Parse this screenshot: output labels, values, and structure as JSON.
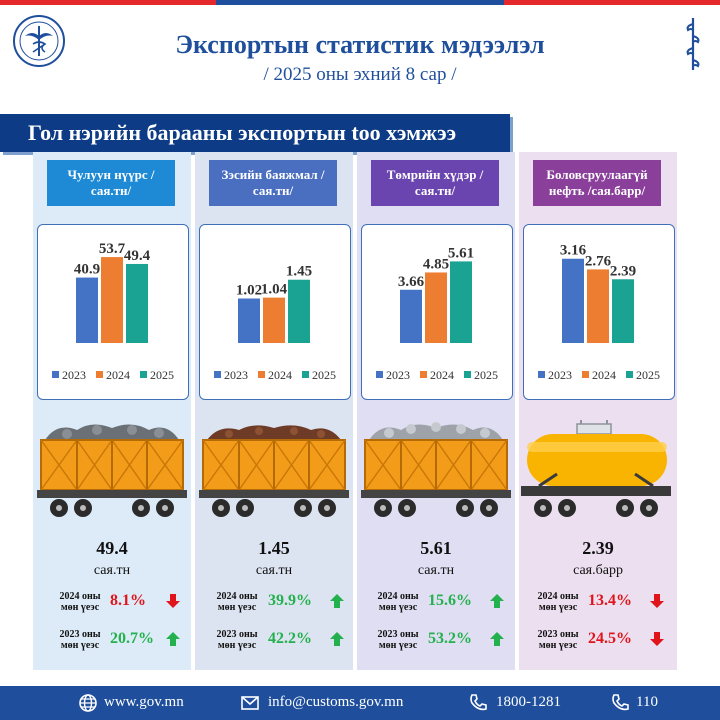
{
  "header": {
    "title": "Экспортын статистик мэдээлэл",
    "subtitle": "/ 2025 оны эхний 8 сар /",
    "section_title": "Гол нэрийн барааны экспортын too хэмжээ"
  },
  "colors": {
    "y2023": "#4472c4",
    "y2024": "#ed7d31",
    "y2025": "#1aa392",
    "up": "#22b14c",
    "down": "#e0151b"
  },
  "chart_data": [
    {
      "type": "bar",
      "title": "Чулуун нүүрс /сая.тн/",
      "categories": [
        "2023",
        "2024",
        "2025"
      ],
      "values": [
        40.9,
        53.7,
        49.4
      ],
      "ylim": [
        0,
        60
      ]
    },
    {
      "type": "bar",
      "title": "Зэсийн баяжмал /сая.тн/",
      "categories": [
        "2023",
        "2024",
        "2025"
      ],
      "values": [
        1.02,
        1.04,
        1.45
      ],
      "ylim": [
        0,
        2.2
      ]
    },
    {
      "type": "bar",
      "title": "Төмрийн хүдэр /сая.тн/",
      "categories": [
        "2023",
        "2024",
        "2025"
      ],
      "values": [
        3.66,
        4.85,
        5.61
      ],
      "ylim": [
        0,
        6.6
      ]
    },
    {
      "type": "bar",
      "title": "Боловсруулаагүй нефть /сая.барр/",
      "categories": [
        "2023",
        "2024",
        "2025"
      ],
      "values": [
        3.16,
        2.76,
        2.39
      ],
      "ylim": [
        0,
        3.6
      ]
    }
  ],
  "columns": [
    {
      "label": "Чулуун нүүрс /сая.тн/",
      "total": "49.4",
      "unit": "сая.тн",
      "cmp1_label": "2024 оны мөн үеэс",
      "cmp1_value": "8.1%",
      "cmp1_dir": "down",
      "cmp2_label": "2023 оны мөн үеэс",
      "cmp2_value": "20.7%",
      "cmp2_dir": "up"
    },
    {
      "label": "Зэсийн баяжмал /сая.тн/",
      "total": "1.45",
      "unit": "сая.тн",
      "cmp1_label": "2024 оны мөн үеэс",
      "cmp1_value": "39.9%",
      "cmp1_dir": "up",
      "cmp2_label": "2023 оны мөн үеэс",
      "cmp2_value": "42.2%",
      "cmp2_dir": "up"
    },
    {
      "label": "Төмрийн хүдэр /сая.тн/",
      "total": "5.61",
      "unit": "сая.тн",
      "cmp1_label": "2024 оны мөн үеэс",
      "cmp1_value": "15.6%",
      "cmp1_dir": "up",
      "cmp2_label": "2023 оны мөн үеэс",
      "cmp2_value": "53.2%",
      "cmp2_dir": "up"
    },
    {
      "label": "Боловсруулаагүй нефть /сая.барр/",
      "total": "2.39",
      "unit": "сая.барр",
      "cmp1_label": "2024 оны мөн үеэс",
      "cmp1_value": "13.4%",
      "cmp1_dir": "down",
      "cmp2_label": "2023 оны мөн үеэс",
      "cmp2_value": "24.5%",
      "cmp2_dir": "down"
    }
  ],
  "footer": {
    "website": "www.gov.mn",
    "email": "info@customs.gov.mn",
    "phone1": "1800-1281",
    "phone2": "110"
  }
}
